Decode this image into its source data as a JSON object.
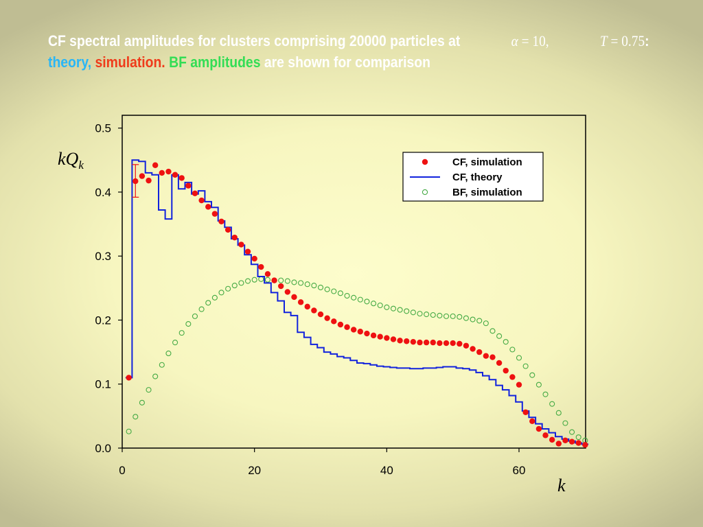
{
  "title": {
    "prefix": "CF spectral amplitudes for clusters comprising 20000 particles at",
    "math1_sym": "α",
    "math1_rest": " = 10,",
    "math2_sym": "T",
    "math2_rest": " = 0.75",
    "colon": ":",
    "theory": "theory,",
    "simulation": "simulation.",
    "bf": "BF amplitudes",
    "suffix": "are shown for comparison",
    "colors": {
      "text": "#ffffff",
      "theory": "#29b6f6",
      "simulation": "#ef3b1b",
      "bf": "#33dd55"
    }
  },
  "chart_data": {
    "type": "line",
    "xlabel": "k",
    "ylabel": "kQ",
    "ylabel_sub": "k",
    "xlim": [
      0,
      70
    ],
    "ylim": [
      0,
      0.52
    ],
    "xticks": [
      0,
      20,
      40,
      60
    ],
    "xtick_labels": [
      "0",
      "20",
      "40",
      "60"
    ],
    "yticks": [
      0,
      0.1,
      0.2,
      0.3,
      0.4,
      0.5
    ],
    "ytick_labels": [
      "0.0",
      "0.1",
      "0.2",
      "0.3",
      "0.4",
      "0.5"
    ],
    "grid": false,
    "legend_position": "top-right",
    "series": [
      {
        "name": "CF, simulation",
        "style": "filled-circle",
        "color": "#ee1111",
        "x": [
          1,
          2,
          3,
          4,
          5,
          6,
          7,
          8,
          9,
          10,
          11,
          12,
          13,
          14,
          15,
          16,
          17,
          18,
          19,
          20,
          21,
          22,
          23,
          24,
          25,
          26,
          27,
          28,
          29,
          30,
          31,
          32,
          33,
          34,
          35,
          36,
          37,
          38,
          39,
          40,
          41,
          42,
          43,
          44,
          45,
          46,
          47,
          48,
          49,
          50,
          51,
          52,
          53,
          54,
          55,
          56,
          57,
          58,
          59,
          60,
          61,
          62,
          63,
          64,
          65,
          66,
          67,
          68,
          69,
          70
        ],
        "y": [
          0.11,
          0.417,
          0.425,
          0.418,
          0.442,
          0.43,
          0.432,
          0.427,
          0.422,
          0.41,
          0.398,
          0.387,
          0.377,
          0.366,
          0.354,
          0.341,
          0.329,
          0.318,
          0.307,
          0.296,
          0.283,
          0.272,
          0.262,
          0.253,
          0.244,
          0.236,
          0.228,
          0.221,
          0.215,
          0.209,
          0.203,
          0.198,
          0.193,
          0.189,
          0.185,
          0.182,
          0.179,
          0.176,
          0.174,
          0.172,
          0.17,
          0.168,
          0.167,
          0.166,
          0.165,
          0.165,
          0.165,
          0.164,
          0.164,
          0.164,
          0.163,
          0.16,
          0.155,
          0.15,
          0.144,
          0.142,
          0.133,
          0.121,
          0.111,
          0.099,
          0.056,
          0.042,
          0.03,
          0.02,
          0.013,
          0.007,
          0.012,
          0.01,
          0.008,
          0.005
        ],
        "error_bars": [
          {
            "x": 2,
            "low": 0.392,
            "high": 0.443
          }
        ]
      },
      {
        "name": "CF, theory",
        "style": "step",
        "color": "#1122dd",
        "x": [
          1,
          2,
          3,
          4,
          5,
          6,
          7,
          8,
          9,
          10,
          11,
          12,
          13,
          14,
          15,
          16,
          17,
          18,
          19,
          20,
          21,
          22,
          23,
          24,
          25,
          26,
          27,
          28,
          29,
          30,
          31,
          32,
          33,
          34,
          35,
          36,
          37,
          38,
          39,
          40,
          41,
          42,
          43,
          44,
          45,
          46,
          47,
          48,
          49,
          50,
          51,
          52,
          53,
          54,
          55,
          56,
          57,
          58,
          59,
          60,
          61,
          62,
          63,
          64,
          65,
          66,
          67,
          68,
          69,
          70
        ],
        "y": [
          0.11,
          0.45,
          0.448,
          0.43,
          0.427,
          0.372,
          0.358,
          0.427,
          0.405,
          0.415,
          0.397,
          0.402,
          0.385,
          0.376,
          0.355,
          0.345,
          0.327,
          0.317,
          0.302,
          0.287,
          0.268,
          0.258,
          0.243,
          0.23,
          0.212,
          0.207,
          0.181,
          0.173,
          0.162,
          0.157,
          0.15,
          0.147,
          0.143,
          0.141,
          0.137,
          0.133,
          0.132,
          0.13,
          0.128,
          0.127,
          0.126,
          0.125,
          0.125,
          0.124,
          0.124,
          0.125,
          0.125,
          0.126,
          0.127,
          0.127,
          0.125,
          0.124,
          0.122,
          0.118,
          0.113,
          0.107,
          0.098,
          0.091,
          0.082,
          0.072,
          0.058,
          0.048,
          0.038,
          0.03,
          0.024,
          0.018,
          0.014,
          0.011,
          0.008,
          0.006
        ]
      },
      {
        "name": "BF, simulation",
        "style": "open-circle",
        "color": "#44aa44",
        "x": [
          1,
          2,
          3,
          4,
          5,
          6,
          7,
          8,
          9,
          10,
          11,
          12,
          13,
          14,
          15,
          16,
          17,
          18,
          19,
          20,
          21,
          22,
          23,
          24,
          25,
          26,
          27,
          28,
          29,
          30,
          31,
          32,
          33,
          34,
          35,
          36,
          37,
          38,
          39,
          40,
          41,
          42,
          43,
          44,
          45,
          46,
          47,
          48,
          49,
          50,
          51,
          52,
          53,
          54,
          55,
          56,
          57,
          58,
          59,
          60,
          61,
          62,
          63,
          64,
          65,
          66,
          67,
          68,
          69,
          70
        ],
        "y": [
          0.026,
          0.049,
          0.071,
          0.091,
          0.112,
          0.13,
          0.148,
          0.165,
          0.18,
          0.194,
          0.206,
          0.217,
          0.227,
          0.235,
          0.243,
          0.249,
          0.254,
          0.258,
          0.261,
          0.263,
          0.264,
          0.263,
          0.262,
          0.262,
          0.261,
          0.259,
          0.258,
          0.256,
          0.254,
          0.251,
          0.248,
          0.245,
          0.242,
          0.238,
          0.235,
          0.232,
          0.229,
          0.226,
          0.223,
          0.22,
          0.218,
          0.216,
          0.214,
          0.212,
          0.21,
          0.209,
          0.208,
          0.207,
          0.206,
          0.206,
          0.205,
          0.203,
          0.201,
          0.199,
          0.195,
          0.183,
          0.175,
          0.166,
          0.154,
          0.141,
          0.128,
          0.114,
          0.099,
          0.084,
          0.069,
          0.055,
          0.039,
          0.025,
          0.017,
          0.012
        ]
      }
    ]
  }
}
